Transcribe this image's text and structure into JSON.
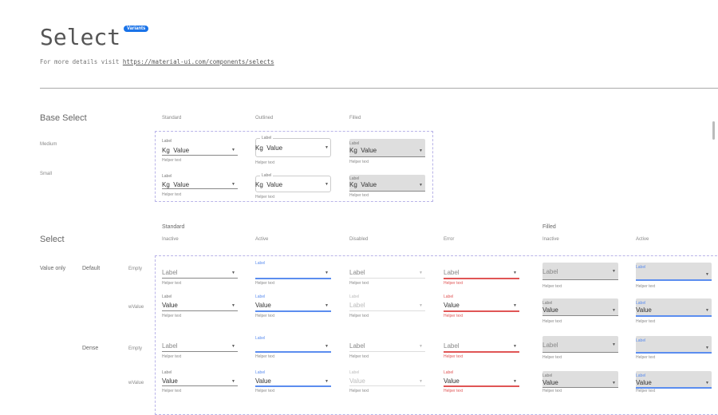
{
  "header": {
    "title": "Select",
    "badge": "Variants",
    "description": "For more details visit ",
    "link": "https://material-ui.com/components/selects"
  },
  "base": {
    "title": "Base Select",
    "cols": [
      "Standard",
      "Outlined",
      "Filled"
    ],
    "rows": [
      "Medium",
      "Small"
    ],
    "label": "Label",
    "value": "Kg  Value",
    "helper": "Helper text"
  },
  "select": {
    "title": "Select",
    "groups": [
      "Standard",
      "Filled"
    ],
    "cols": [
      "Inactive",
      "Active",
      "Disabled",
      "Error",
      "Inactive",
      "Active"
    ],
    "group_row": "Value only",
    "sizes": [
      "Default",
      "Dense"
    ],
    "states": [
      "Empty",
      "wValue"
    ],
    "label": "Label",
    "value": "Value",
    "helper": "Helper text",
    "disabled_default_value": "Label"
  },
  "colors": {
    "accent": "#5b8def",
    "error": "#e05555",
    "badge": "#1a73e8",
    "filled_bg": "#dedede"
  },
  "icons": {
    "dropdown": "caret-down-icon"
  }
}
